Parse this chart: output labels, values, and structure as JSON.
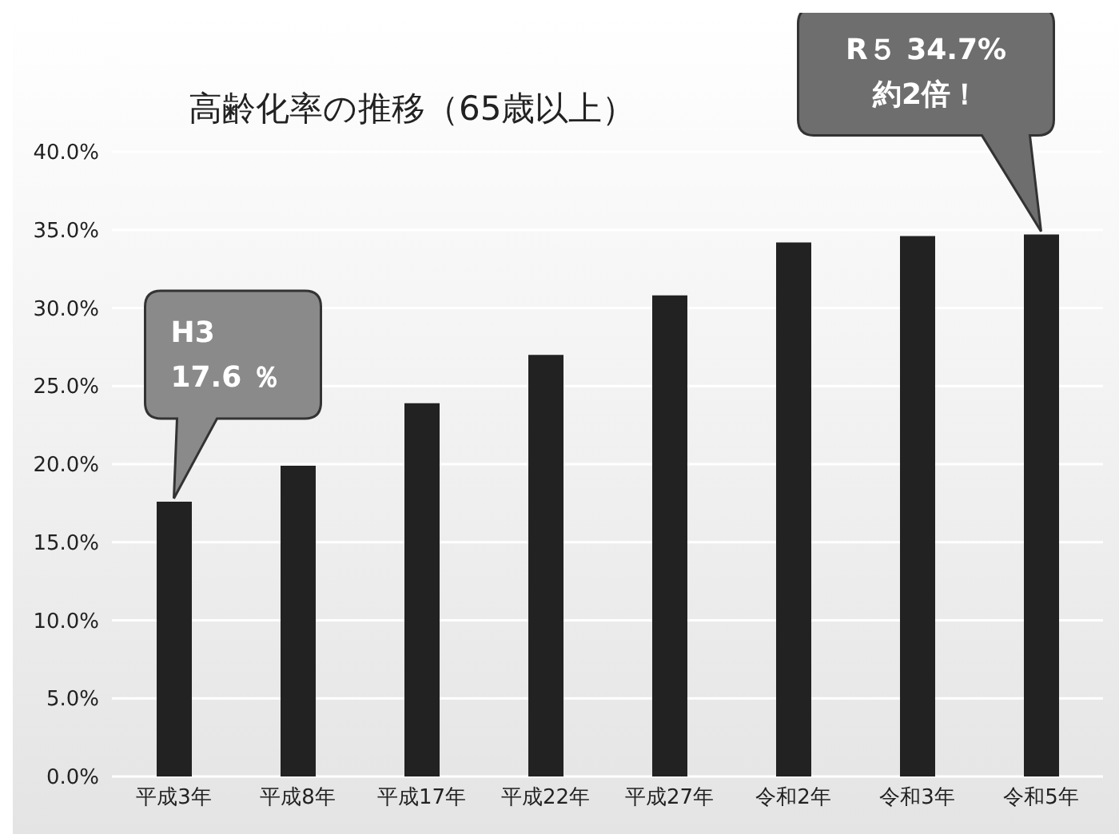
{
  "chart_data": {
    "type": "bar",
    "title": "高齢化率の推移（65歳以上）",
    "categories": [
      "平成3年",
      "平成8年",
      "平成17年",
      "平成22年",
      "平成27年",
      "令和2年",
      "令和3年",
      "令和5年"
    ],
    "values": [
      17.6,
      19.9,
      23.9,
      27.0,
      30.8,
      34.2,
      34.6,
      34.7
    ],
    "color": "#222222",
    "ylim": [
      0,
      40
    ],
    "yticks": [
      {
        "value": 0,
        "label": "0.0%"
      },
      {
        "value": 5,
        "label": "5.0%"
      },
      {
        "value": 10,
        "label": "10.0%"
      },
      {
        "value": 15,
        "label": "15.0%"
      },
      {
        "value": 20,
        "label": "20.0%"
      },
      {
        "value": 25,
        "label": "25.0%"
      },
      {
        "value": 30,
        "label": "30.0%"
      },
      {
        "value": 35,
        "label": "35.0%"
      },
      {
        "value": 40,
        "label": "40.0%"
      }
    ],
    "grid": "y",
    "annotations": [
      "H3\n17.6 ％",
      "R５ 34.7%\n約2倍！"
    ]
  }
}
